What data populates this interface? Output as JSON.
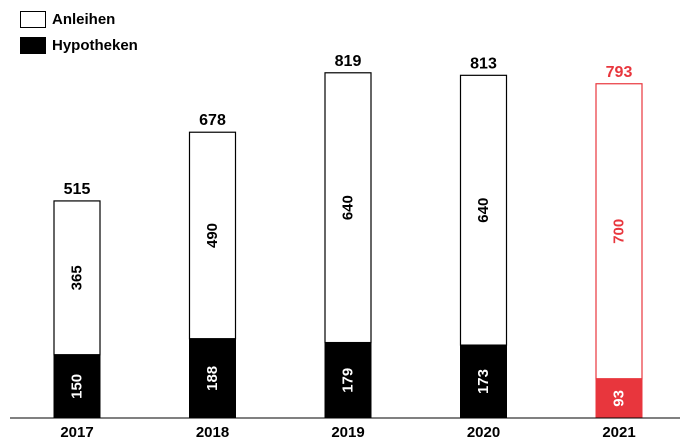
{
  "chart_data": {
    "type": "bar",
    "stacked": true,
    "categories": [
      "2017",
      "2018",
      "2019",
      "2020",
      "2021"
    ],
    "series": [
      {
        "name": "Hypotheken",
        "values": [
          150,
          188,
          179,
          173,
          93
        ]
      },
      {
        "name": "Anleihen",
        "values": [
          365,
          490,
          640,
          640,
          700
        ]
      }
    ],
    "totals": [
      515,
      678,
      819,
      813,
      793
    ],
    "highlight_category": "2021",
    "colors": {
      "hypotheken": "#000000",
      "anleihen": "#ffffff",
      "outline": "#000000",
      "highlight": "#e8363d"
    },
    "title": "",
    "xlabel": "",
    "ylabel": "",
    "ylim": [
      0,
      880
    ],
    "grid": false,
    "legend_position": "top-left"
  },
  "legend": {
    "items": [
      {
        "label": "Anleihen",
        "swatch": "#ffffff"
      },
      {
        "label": "Hypotheken",
        "swatch": "#000000"
      }
    ]
  }
}
